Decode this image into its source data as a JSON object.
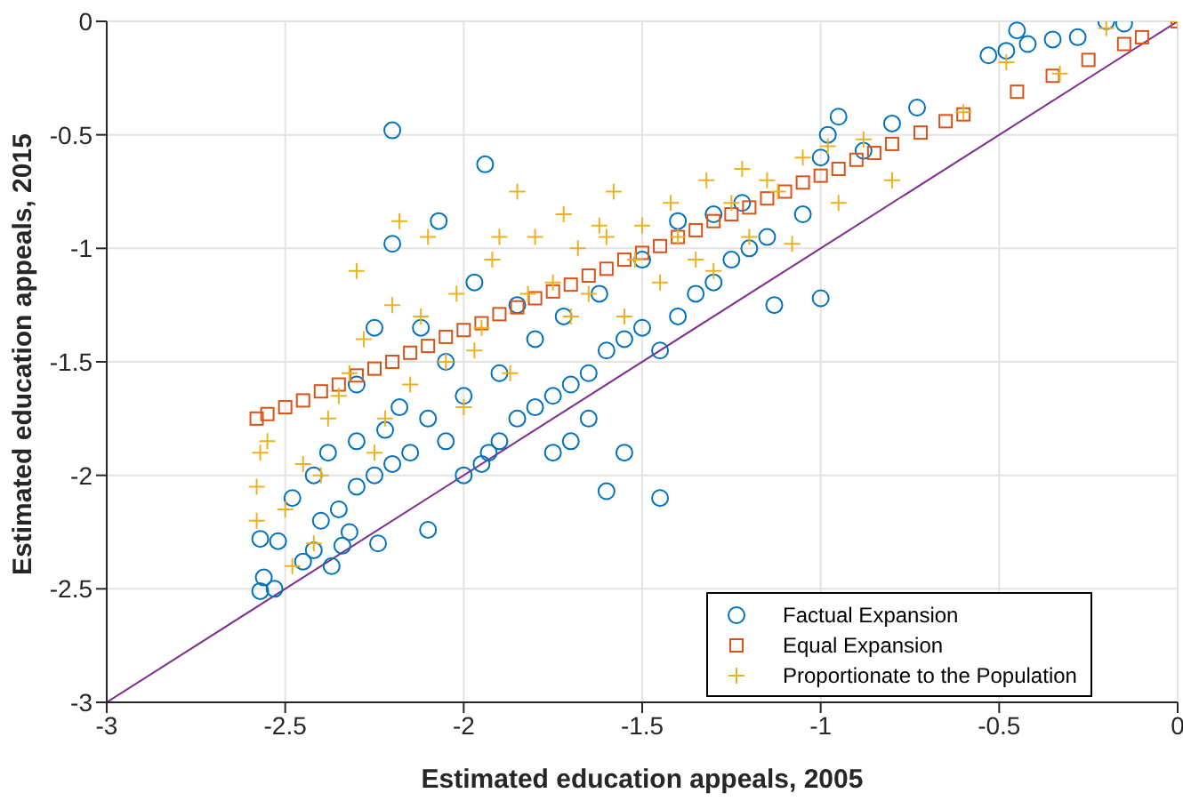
{
  "chart_data": {
    "type": "scatter",
    "xlabel": "Estimated education appeals, 2005",
    "ylabel": "Estimated education appeals, 2015",
    "xlim": [
      -3,
      0
    ],
    "ylim": [
      -3,
      0
    ],
    "xticks": [
      -3,
      -2.5,
      -2,
      -1.5,
      -1,
      -0.5,
      0
    ],
    "yticks": [
      -3,
      -2.5,
      -2,
      -1.5,
      -1,
      -0.5,
      0
    ],
    "grid": true,
    "legend": "bottom right",
    "series": [
      {
        "name": "Factual Expansion",
        "color": "#0072bd",
        "marker": "circle",
        "x": [
          -2.57,
          -2.56,
          -2.57,
          -2.53,
          -2.52,
          -2.45,
          -2.42,
          -2.37,
          -2.34,
          -2.32,
          -2.24,
          -2.1,
          -2.48,
          -2.4,
          -2.35,
          -2.3,
          -2.25,
          -2.2,
          -2.15,
          -2.42,
          -2.38,
          -2.3,
          -2.22,
          -2.18,
          -2.1,
          -2.05,
          -2.0,
          -1.95,
          -1.9,
          -1.85,
          -1.8,
          -1.75,
          -1.7,
          -1.65,
          -1.6,
          -1.55,
          -1.5,
          -1.45,
          -1.4,
          -1.35,
          -1.3,
          -1.25,
          -1.2,
          -1.15,
          -2.2,
          -1.94,
          -2.2,
          -2.07,
          -1.97,
          -2.12,
          -2.0,
          -1.93,
          -1.9,
          -2.05,
          -1.8,
          -1.72,
          -1.65,
          -1.6,
          -1.45,
          -1.62,
          -1.5,
          -1.4,
          -1.3,
          -1.22,
          -1.0,
          -1.13,
          -1.05,
          -1.0,
          -0.98,
          -0.95,
          -0.88,
          -0.8,
          -0.73,
          -0.53,
          -0.48,
          -0.42,
          -0.35,
          -0.28,
          -0.2,
          -0.15,
          -0.45,
          -1.75,
          -1.85,
          -2.3,
          -2.25,
          -1.55,
          -1.7
        ],
        "values": [
          -2.28,
          -2.45,
          -2.51,
          -2.5,
          -2.29,
          -2.38,
          -2.33,
          -2.4,
          -2.31,
          -2.25,
          -2.3,
          -2.24,
          -2.1,
          -2.2,
          -2.15,
          -2.05,
          -2.0,
          -1.95,
          -1.9,
          -2.0,
          -1.9,
          -1.85,
          -1.8,
          -1.7,
          -1.75,
          -1.85,
          -2.0,
          -1.95,
          -1.85,
          -1.75,
          -1.7,
          -1.65,
          -1.6,
          -1.55,
          -1.45,
          -1.4,
          -1.35,
          -1.45,
          -1.3,
          -1.2,
          -1.15,
          -1.05,
          -1.0,
          -0.95,
          -0.48,
          -0.63,
          -0.98,
          -0.88,
          -1.15,
          -1.35,
          -1.65,
          -1.9,
          -1.55,
          -1.5,
          -1.4,
          -1.3,
          -1.75,
          -2.07,
          -2.1,
          -1.2,
          -1.05,
          -0.88,
          -0.85,
          -0.8,
          -1.22,
          -1.25,
          -0.85,
          -0.6,
          -0.5,
          -0.42,
          -0.57,
          -0.45,
          -0.38,
          -0.15,
          -0.13,
          -0.1,
          -0.08,
          -0.07,
          0,
          -0.01,
          -0.04,
          -1.9,
          -1.25,
          -1.6,
          -1.35,
          -1.9,
          -1.85
        ]
      },
      {
        "name": "Equal Expansion",
        "color": "#d95319",
        "marker": "square",
        "x": [
          -2.58,
          -2.55,
          -2.5,
          -2.45,
          -2.4,
          -2.35,
          -2.3,
          -2.25,
          -2.2,
          -2.15,
          -2.1,
          -2.05,
          -2.0,
          -1.95,
          -1.9,
          -1.85,
          -1.8,
          -1.75,
          -1.7,
          -1.65,
          -1.6,
          -1.55,
          -1.5,
          -1.45,
          -1.4,
          -1.35,
          -1.3,
          -1.25,
          -1.2,
          -1.15,
          -1.1,
          -1.05,
          -1.0,
          -0.95,
          -0.9,
          -0.85,
          -0.8,
          -0.72,
          -0.65,
          -0.6,
          -0.45,
          -0.35,
          -0.25,
          -0.15,
          -0.1,
          0
        ],
        "values": [
          -1.75,
          -1.73,
          -1.7,
          -1.67,
          -1.63,
          -1.6,
          -1.56,
          -1.53,
          -1.5,
          -1.46,
          -1.43,
          -1.39,
          -1.36,
          -1.33,
          -1.29,
          -1.26,
          -1.22,
          -1.19,
          -1.16,
          -1.12,
          -1.09,
          -1.05,
          -1.02,
          -0.99,
          -0.95,
          -0.92,
          -0.88,
          -0.85,
          -0.82,
          -0.78,
          -0.75,
          -0.71,
          -0.68,
          -0.65,
          -0.61,
          -0.58,
          -0.54,
          -0.49,
          -0.44,
          -0.41,
          -0.31,
          -0.24,
          -0.17,
          -0.1,
          -0.07,
          0
        ]
      },
      {
        "name": "Proportionate to the Population",
        "color": "#edb120",
        "marker": "cross",
        "x": [
          -2.58,
          -2.58,
          -2.57,
          -2.55,
          -2.5,
          -2.48,
          -2.45,
          -2.42,
          -2.4,
          -2.38,
          -2.35,
          -2.32,
          -2.3,
          -2.28,
          -2.25,
          -2.22,
          -2.2,
          -2.18,
          -2.15,
          -2.12,
          -2.1,
          -2.05,
          -2.02,
          -2.0,
          -1.97,
          -1.95,
          -1.92,
          -1.9,
          -1.87,
          -1.85,
          -1.82,
          -1.8,
          -1.75,
          -1.72,
          -1.7,
          -1.68,
          -1.65,
          -1.62,
          -1.6,
          -1.58,
          -1.55,
          -1.52,
          -1.5,
          -1.45,
          -1.42,
          -1.4,
          -1.35,
          -1.32,
          -1.3,
          -1.25,
          -1.22,
          -1.2,
          -1.15,
          -1.12,
          -1.08,
          -1.05,
          -0.98,
          -0.95,
          -0.88,
          -0.8,
          -0.6,
          -0.48,
          -0.33,
          -0.2,
          0
        ],
        "values": [
          -2.2,
          -2.05,
          -1.9,
          -1.85,
          -2.15,
          -2.4,
          -1.95,
          -2.3,
          -2.0,
          -1.75,
          -1.65,
          -1.55,
          -1.1,
          -1.4,
          -1.9,
          -1.75,
          -1.25,
          -0.88,
          -1.6,
          -1.3,
          -0.95,
          -1.5,
          -1.2,
          -1.7,
          -1.45,
          -1.35,
          -1.05,
          -0.95,
          -1.55,
          -0.75,
          -1.2,
          -0.95,
          -1.15,
          -0.85,
          -1.3,
          -1.0,
          -1.2,
          -0.9,
          -0.95,
          -0.75,
          -1.3,
          -1.05,
          -0.9,
          -1.15,
          -0.8,
          -0.95,
          -1.05,
          -0.7,
          -1.1,
          -0.8,
          -0.65,
          -0.95,
          -0.7,
          -0.75,
          -0.98,
          -0.6,
          -0.55,
          -0.8,
          -0.52,
          -0.7,
          -0.4,
          -0.18,
          -0.23,
          -0.03,
          0
        ]
      },
      {
        "type": "line",
        "color": "#7e2f8e",
        "marker": "none",
        "x": [
          -3,
          0
        ],
        "values": [
          -3,
          0
        ]
      }
    ]
  }
}
